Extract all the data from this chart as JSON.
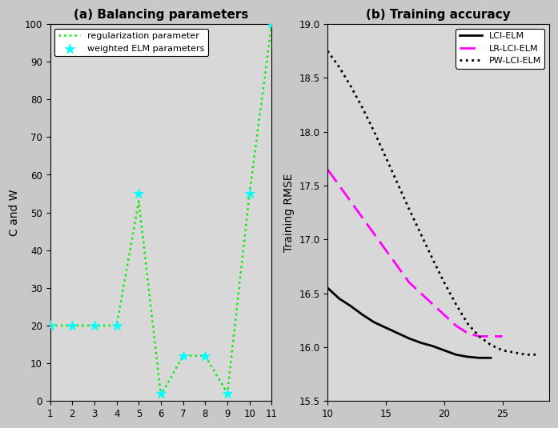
{
  "left": {
    "title": "(a) Balancing parameters",
    "ylabel": "C and W",
    "xlim": [
      1,
      11
    ],
    "ylim": [
      0,
      100
    ],
    "xticks": [
      1,
      2,
      3,
      4,
      5,
      6,
      7,
      8,
      9,
      10,
      11
    ],
    "yticks": [
      0,
      10,
      20,
      30,
      40,
      50,
      60,
      70,
      80,
      90,
      100
    ],
    "line_x": [
      1,
      2,
      3,
      4,
      5,
      6,
      7,
      8,
      9,
      10,
      11
    ],
    "line_y": [
      20,
      20,
      20,
      20,
      53,
      1.5,
      12,
      12,
      2,
      55,
      100
    ],
    "line_color": "#00EE00",
    "scatter_x": [
      1,
      2,
      3,
      4,
      5,
      6,
      7,
      8,
      9,
      10,
      11
    ],
    "scatter_y": [
      20,
      20,
      20,
      20,
      55,
      2,
      12,
      12,
      2,
      55,
      100
    ],
    "scatter_color": "cyan",
    "scatter_size": 100,
    "legend_labels": [
      "regularization parameter",
      "weighted ELM parameters"
    ],
    "background": "#D8D8D8"
  },
  "right": {
    "title": "(b) Training accuracy",
    "ylabel": "Training RMSE",
    "xlim": [
      10,
      29
    ],
    "ylim": [
      15.5,
      19.0
    ],
    "xticks": [
      10,
      15,
      20,
      25
    ],
    "yticks": [
      15.5,
      16.0,
      16.5,
      17.0,
      17.5,
      18.0,
      18.5,
      19.0
    ],
    "lci_x": [
      10,
      11,
      12,
      13,
      14,
      15,
      16,
      17,
      18,
      19,
      20,
      21,
      22,
      23,
      24
    ],
    "lci_y": [
      16.55,
      16.45,
      16.38,
      16.3,
      16.23,
      16.18,
      16.13,
      16.08,
      16.04,
      16.01,
      15.97,
      15.93,
      15.91,
      15.9,
      15.9
    ],
    "lr_x": [
      10,
      11,
      12,
      13,
      14,
      15,
      16,
      17,
      18,
      19,
      20,
      21,
      22,
      23,
      24,
      25
    ],
    "lr_y": [
      17.65,
      17.5,
      17.35,
      17.2,
      17.05,
      16.9,
      16.75,
      16.6,
      16.5,
      16.4,
      16.3,
      16.2,
      16.13,
      16.1,
      16.1,
      16.1
    ],
    "pw_x": [
      10,
      11,
      12,
      13,
      14,
      15,
      16,
      17,
      18,
      19,
      20,
      21,
      22,
      23,
      24,
      25,
      26,
      27,
      28
    ],
    "pw_y": [
      18.75,
      18.6,
      18.42,
      18.22,
      18.0,
      17.76,
      17.52,
      17.28,
      17.05,
      16.82,
      16.6,
      16.4,
      16.22,
      16.1,
      16.02,
      15.97,
      15.95,
      15.93,
      15.93
    ],
    "lci_color": "black",
    "lr_color": "magenta",
    "pw_color": "black",
    "legend_labels": [
      "LCI-ELM",
      "LR-LCI-ELM",
      "PW-LCI-ELM"
    ],
    "background": "#D8D8D8"
  },
  "fig_background": "#C8C8C8"
}
